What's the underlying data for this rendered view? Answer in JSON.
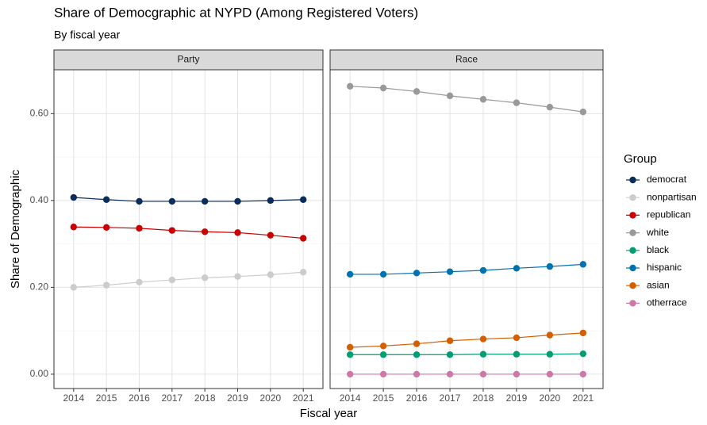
{
  "title": "Share of Democgraphic at NYPD (Among Registered Voters)",
  "subtitle": "By fiscal year",
  "x_label": "Fiscal year",
  "y_label": "Share of Demographic",
  "legend": {
    "title": "Group",
    "position": "right"
  },
  "chart_data": [
    {
      "type": "line",
      "facet": "Party",
      "x": [
        2014,
        2015,
        2016,
        2017,
        2018,
        2019,
        2020,
        2021
      ],
      "xlim": [
        2013.4,
        2021.6
      ],
      "xticks": [
        2014,
        2015,
        2016,
        2017,
        2018,
        2019,
        2020,
        2021
      ],
      "ylim": [
        -0.033,
        0.701
      ],
      "yticks": [
        {
          "value": 0,
          "label": "0.00"
        },
        {
          "value": 0.2,
          "label": "0.20"
        },
        {
          "value": 0.4,
          "label": "0.40"
        },
        {
          "value": 0.6,
          "label": "0.60"
        }
      ],
      "y_minor_ticks": [
        0.1,
        0.3,
        0.5
      ],
      "grid": true,
      "series": [
        {
          "name": "democrat",
          "color": "#0b2d5b",
          "values": [
            0.407,
            0.402,
            0.398,
            0.398,
            0.398,
            0.398,
            0.4,
            0.402
          ]
        },
        {
          "name": "nonpartisan",
          "color": "#cccccc",
          "values": [
            0.2,
            0.205,
            0.212,
            0.217,
            0.222,
            0.225,
            0.229,
            0.235
          ]
        },
        {
          "name": "republican",
          "color": "#cc0000",
          "values": [
            0.339,
            0.338,
            0.336,
            0.331,
            0.328,
            0.326,
            0.32,
            0.313
          ]
        }
      ]
    },
    {
      "type": "line",
      "facet": "Race",
      "x": [
        2014,
        2015,
        2016,
        2017,
        2018,
        2019,
        2020,
        2021
      ],
      "xlim": [
        2013.4,
        2021.6
      ],
      "xticks": [
        2014,
        2015,
        2016,
        2017,
        2018,
        2019,
        2020,
        2021
      ],
      "ylim": [
        -0.033,
        0.701
      ],
      "grid": true,
      "series": [
        {
          "name": "white",
          "color": "#999999",
          "values": [
            0.663,
            0.659,
            0.651,
            0.641,
            0.633,
            0.625,
            0.615,
            0.604
          ]
        },
        {
          "name": "black",
          "color": "#009e73",
          "values": [
            0.045,
            0.045,
            0.045,
            0.045,
            0.046,
            0.046,
            0.046,
            0.047
          ]
        },
        {
          "name": "hispanic",
          "color": "#0072b2",
          "values": [
            0.23,
            0.23,
            0.233,
            0.236,
            0.239,
            0.244,
            0.248,
            0.253
          ]
        },
        {
          "name": "asian",
          "color": "#d55e00",
          "values": [
            0.062,
            0.065,
            0.07,
            0.077,
            0.081,
            0.084,
            0.09,
            0.095
          ]
        },
        {
          "name": "otherrace",
          "color": "#cc79a7",
          "values": [
            0,
            0,
            0,
            0,
            0,
            0,
            0,
            0
          ]
        }
      ]
    }
  ]
}
